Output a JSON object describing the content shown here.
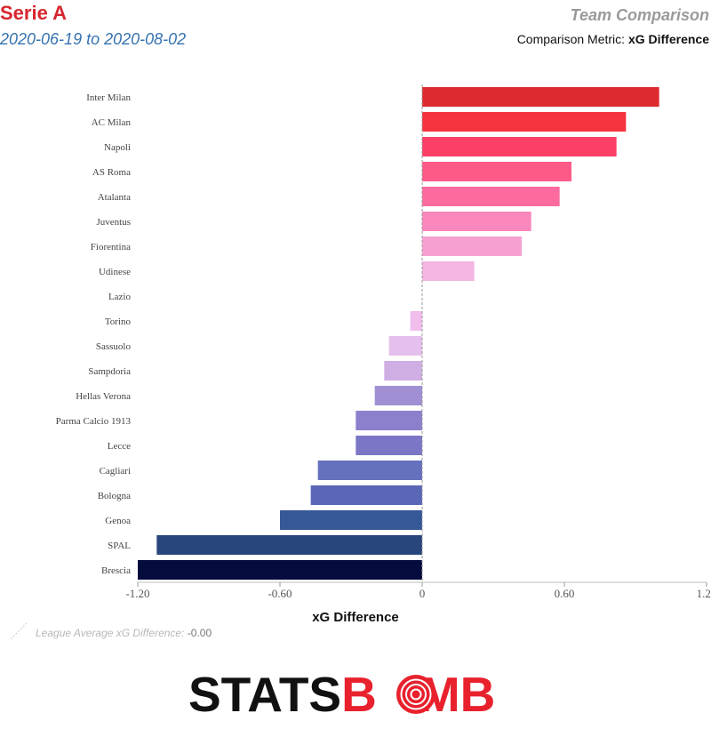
{
  "header": {
    "title": "Serie A",
    "date_range": "2020-06-19 to 2020-08-02",
    "panel_title": "Team Comparison",
    "metric_label": "Comparison Metric:",
    "metric_name": "xG Difference"
  },
  "legend": {
    "text": "League Average xG Difference:",
    "value": "-0.00"
  },
  "logo": {
    "part1": "STATS",
    "part2": "B",
    "part3": "MB"
  },
  "colors": {
    "title_red": "#d7262f",
    "subtitle_blue": "#3572b0",
    "logo_red": "#e8212d"
  },
  "chart_data": {
    "type": "bar",
    "orientation": "horizontal",
    "xlabel": "xG Difference",
    "xlim": [
      -1.2,
      1.2
    ],
    "xticks": [
      -1.2,
      -0.6,
      0,
      0.6,
      1.2
    ],
    "xtick_labels": [
      "-1.20",
      "-0.60",
      "0",
      "0.60",
      "1.20"
    ],
    "categories": [
      "Inter Milan",
      "AC Milan",
      "Napoli",
      "AS Roma",
      "Atalanta",
      "Juventus",
      "Fiorentina",
      "Udinese",
      "Lazio",
      "Torino",
      "Sassuolo",
      "Sampdoria",
      "Hellas Verona",
      "Parma Calcio 1913",
      "Lecce",
      "Cagliari",
      "Bologna",
      "Genoa",
      "SPAL",
      "Brescia"
    ],
    "values": [
      1.0,
      0.86,
      0.82,
      0.63,
      0.58,
      0.46,
      0.42,
      0.22,
      0.0,
      -0.05,
      -0.14,
      -0.16,
      -0.2,
      -0.28,
      -0.28,
      -0.44,
      -0.47,
      -0.6,
      -1.12,
      -1.2
    ],
    "colors": [
      "#dc2a30",
      "#f5343d",
      "#fb3f67",
      "#fd5a88",
      "#fc6a9f",
      "#f987bb",
      "#f6a0d2",
      "#f3b5e2",
      "#f3c3ea",
      "#f0bdec",
      "#e6c0ec",
      "#cfaee4",
      "#a08fd2",
      "#8c80cc",
      "#7b77c6",
      "#6671be",
      "#5967b6",
      "#375897",
      "#28467c",
      "#060b3e"
    ],
    "grid": false,
    "average_line": 0.0
  }
}
